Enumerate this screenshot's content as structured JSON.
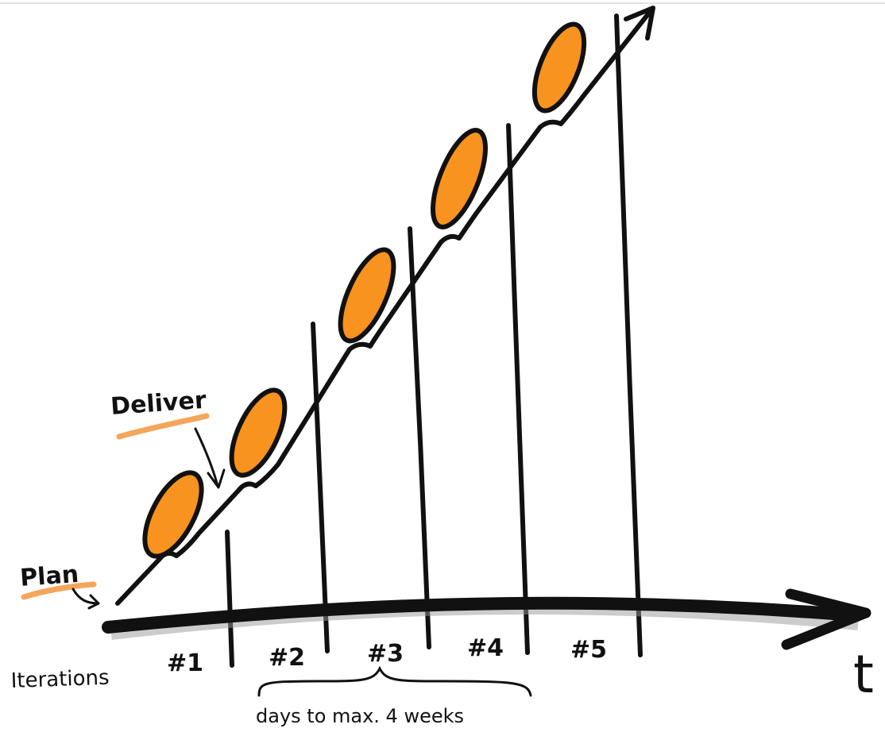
{
  "labels": {
    "plan": "Plan",
    "deliver": "Deliver",
    "iterations": "Iterations",
    "time_axis": "t",
    "duration_note": "days to max. 4 weeks"
  },
  "iterations": [
    {
      "label": "#1"
    },
    {
      "label": "#2"
    },
    {
      "label": "#3"
    },
    {
      "label": "#4"
    },
    {
      "label": "#5"
    }
  ],
  "colors": {
    "ink": "#111111",
    "highlight": "#f7931e",
    "underline": "#f4a65a"
  }
}
